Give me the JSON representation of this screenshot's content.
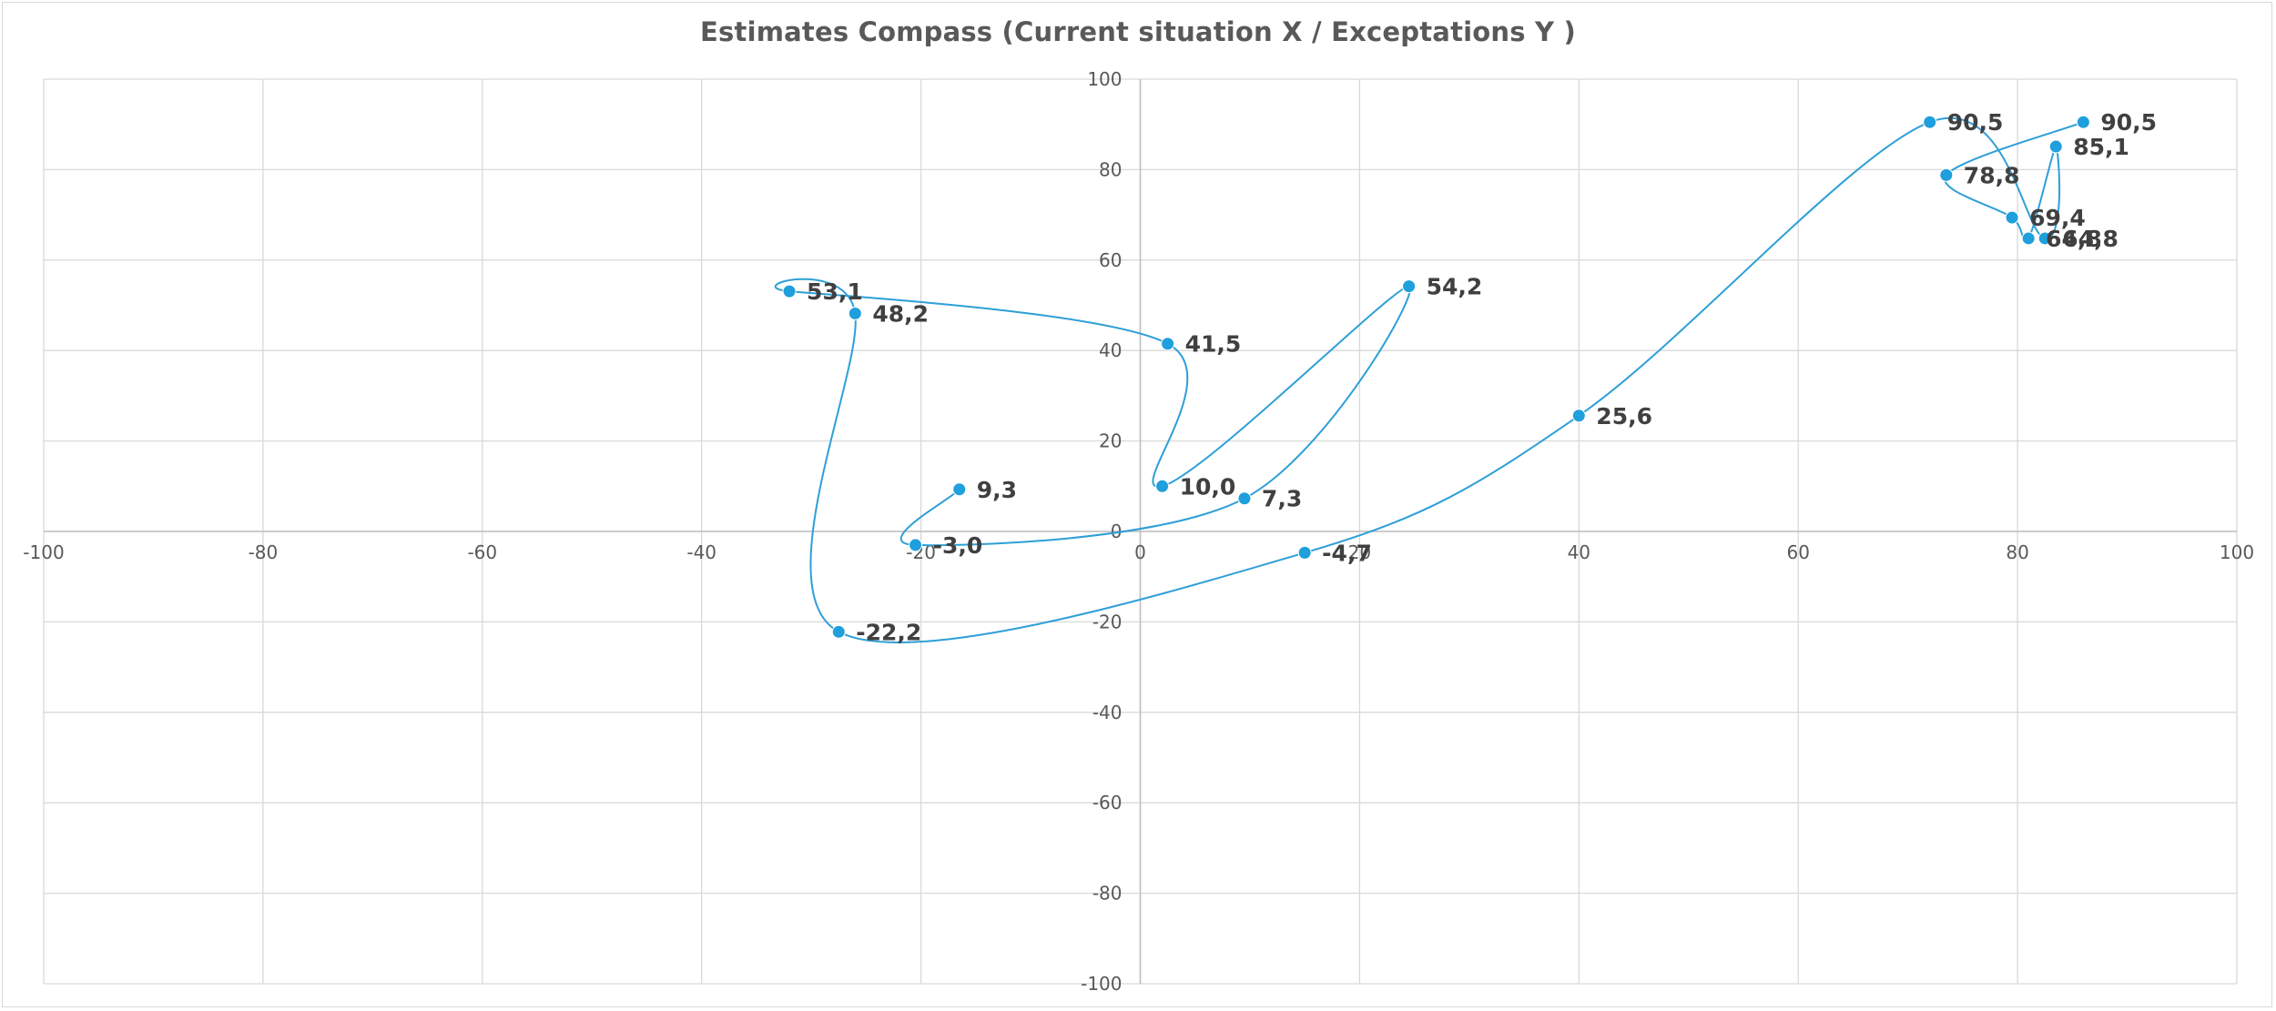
{
  "chart_data": {
    "type": "scatter",
    "title": "Estimates Compass (Current situation X / Exceptations Y )",
    "xlabel": "",
    "ylabel": "",
    "xlim": [
      -100,
      100
    ],
    "ylim": [
      -100,
      100
    ],
    "xticks": [
      -100,
      -80,
      -60,
      -40,
      -20,
      0,
      20,
      40,
      60,
      80,
      100
    ],
    "yticks": [
      -100,
      -80,
      -60,
      -40,
      -20,
      0,
      20,
      40,
      60,
      80,
      100
    ],
    "grid": true,
    "legend": "none",
    "line_style": "smoothed",
    "colors": {
      "series": "#2e9fd8",
      "marker": "#1f9fdc"
    },
    "series": [
      {
        "points": [
          {
            "x": -16.5,
            "y": 9.3,
            "label": "9,3"
          },
          {
            "x": -20.5,
            "y": -3.0,
            "label": "-3,0"
          },
          {
            "x": 9.5,
            "y": 7.3,
            "label": "7,3"
          },
          {
            "x": 24.5,
            "y": 54.2,
            "label": "54,2"
          },
          {
            "x": 2.0,
            "y": 10.0,
            "label": "10,0"
          },
          {
            "x": 2.5,
            "y": 41.5,
            "label": "41,5"
          },
          {
            "x": -32.0,
            "y": 53.1,
            "label": "53,1"
          },
          {
            "x": -26.0,
            "y": 48.2,
            "label": "48,2"
          },
          {
            "x": -27.5,
            "y": -22.2,
            "label": "-22,2"
          },
          {
            "x": 15.0,
            "y": -4.7,
            "label": "-4,7"
          },
          {
            "x": 40.0,
            "y": 25.6,
            "label": "25,6"
          },
          {
            "x": 72.0,
            "y": 90.5,
            "label": "90,5"
          },
          {
            "x": 82.5,
            "y": 64.8,
            "label": "64,8"
          },
          {
            "x": 83.5,
            "y": 85.1,
            "label": "85,1"
          },
          {
            "x": 81.0,
            "y": 64.8,
            "label": "64,8"
          },
          {
            "x": 79.5,
            "y": 69.4,
            "label": "69,4"
          },
          {
            "x": 73.5,
            "y": 78.8,
            "label": "78,8"
          },
          {
            "x": 86.0,
            "y": 90.5,
            "label": "90,5"
          }
        ]
      }
    ]
  }
}
